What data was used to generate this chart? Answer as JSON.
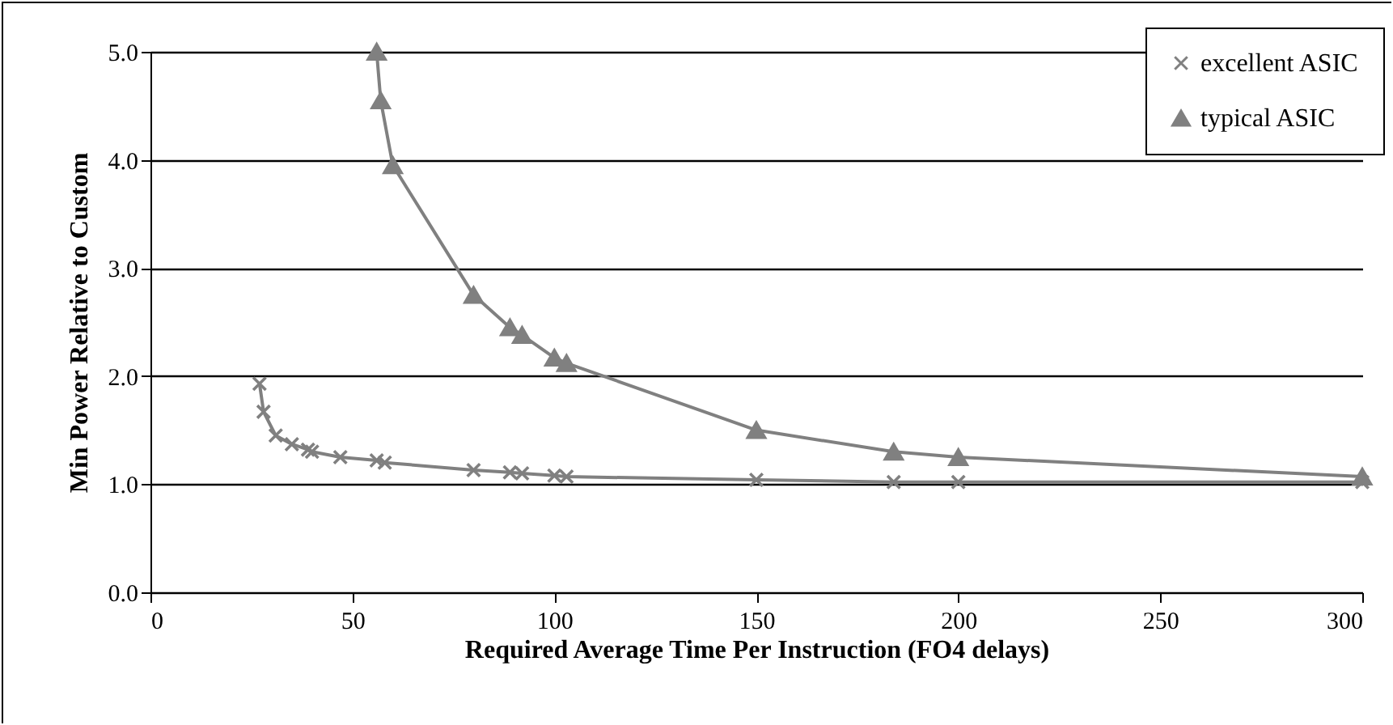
{
  "chart_data": {
    "type": "line",
    "xlabel": "Required Average Time Per Instruction (FO4 delays)",
    "ylabel": "Min Power Relative to Custom",
    "xlim": [
      0,
      300
    ],
    "xticks": [
      0,
      50,
      100,
      150,
      200,
      250,
      300
    ],
    "ylim": [
      0,
      5
    ],
    "yticks": [
      {
        "value": 0,
        "label": "0.0"
      },
      {
        "value": 1,
        "label": "1.0"
      },
      {
        "value": 2,
        "label": "2.0"
      },
      {
        "value": 3,
        "label": "3.0"
      },
      {
        "value": 4,
        "label": "4.0"
      },
      {
        "value": 5,
        "label": "5.0"
      }
    ],
    "grid": "y",
    "legend": "top right",
    "series": [
      {
        "name": "excellent ASIC",
        "color": "#808080",
        "marker": "cross",
        "x": [
          27,
          28,
          31,
          35,
          39,
          40,
          47,
          56,
          58,
          80,
          89,
          92,
          100,
          103,
          150,
          184,
          200,
          300
        ],
        "values": [
          1.93,
          1.67,
          1.45,
          1.37,
          1.32,
          1.3,
          1.25,
          1.22,
          1.2,
          1.13,
          1.11,
          1.1,
          1.08,
          1.07,
          1.04,
          1.02,
          1.02,
          1.02
        ]
      },
      {
        "name": "typical ASIC",
        "color": "#808080",
        "marker": "triangle",
        "x": [
          56,
          57,
          60,
          80,
          89,
          92,
          100,
          103,
          150,
          184,
          200,
          300
        ],
        "values": [
          5.0,
          4.55,
          3.95,
          2.75,
          2.45,
          2.38,
          2.17,
          2.12,
          1.5,
          1.3,
          1.25,
          1.07
        ]
      }
    ]
  }
}
